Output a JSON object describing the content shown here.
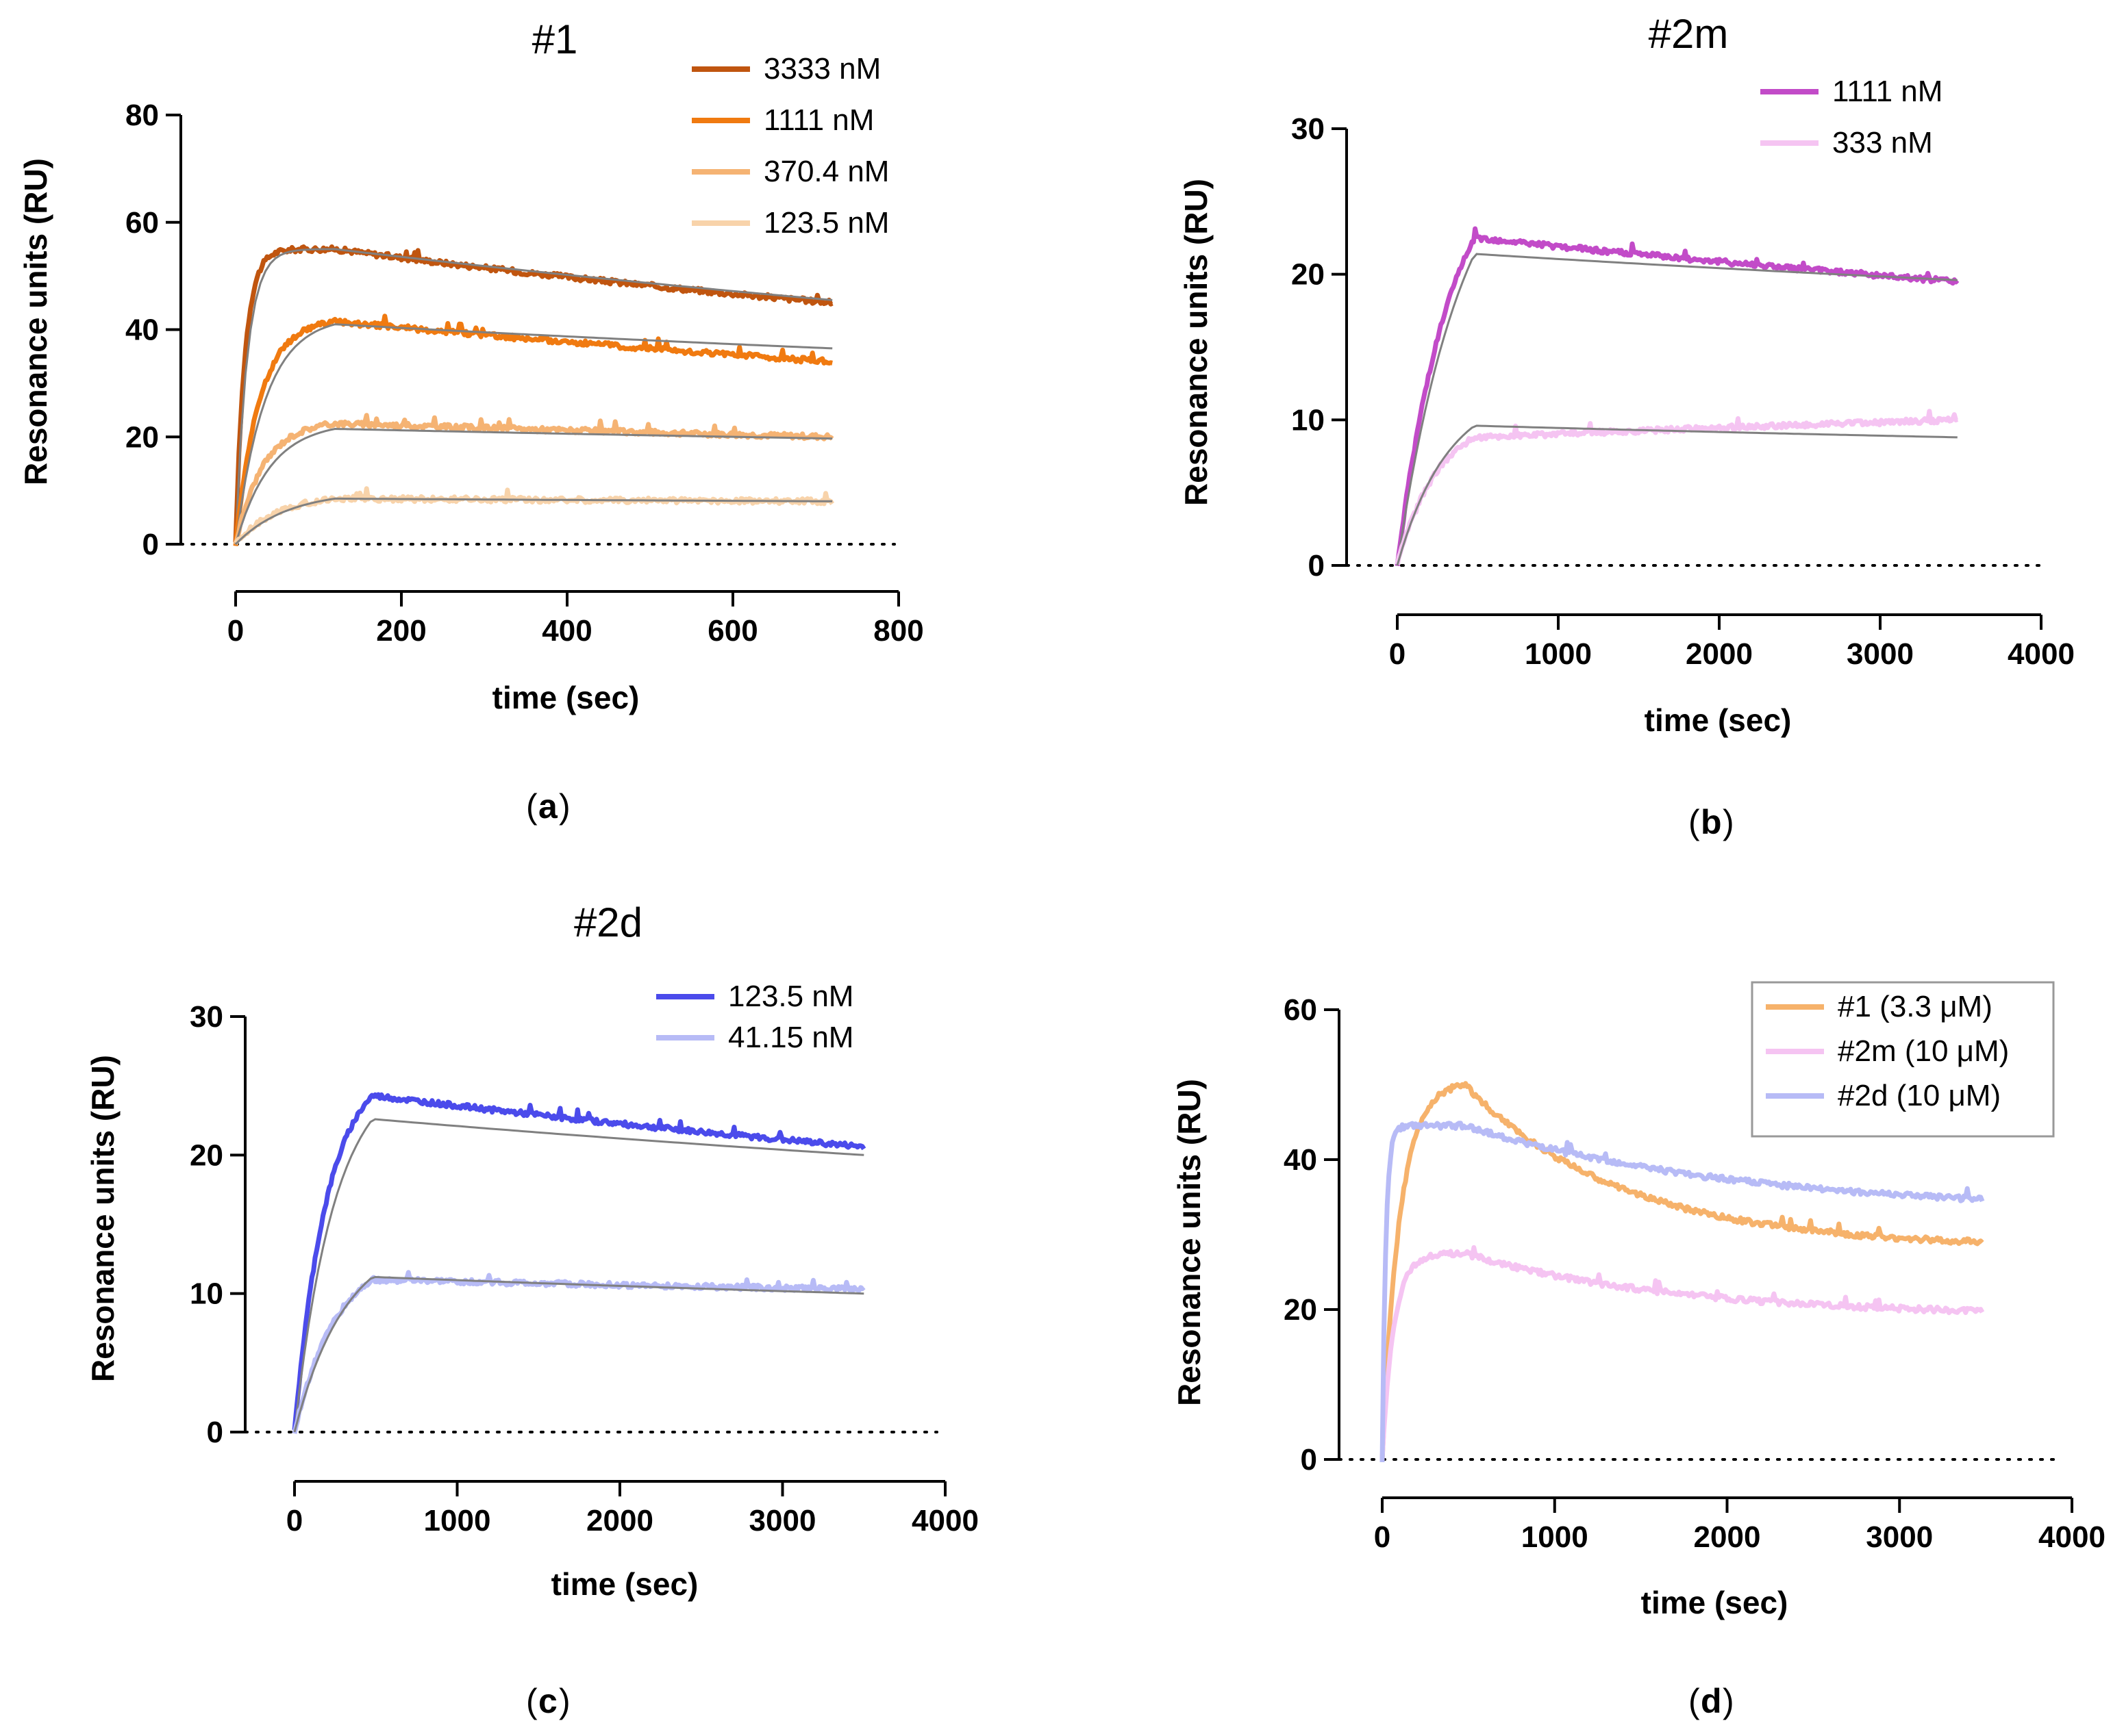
{
  "figure": {
    "panel_labels": [
      "a",
      "b",
      "c",
      "d"
    ],
    "colors": {
      "axis": "#000000",
      "fit": "#808080",
      "baseline": "#000000"
    }
  },
  "chart_data": [
    {
      "id": "a",
      "type": "line",
      "title": "#1",
      "xlabel": "time (sec)",
      "ylabel": "Resonance units (RU)",
      "xlim": [
        0,
        800
      ],
      "ylim": [
        0,
        80
      ],
      "xticks": [
        0,
        200,
        400,
        600,
        800
      ],
      "yticks": [
        0,
        20,
        40,
        60,
        80
      ],
      "baseline": 0,
      "legend_position": "top-right",
      "legend_box": false,
      "series": [
        {
          "name": "3333 nM",
          "color": "#C0550F",
          "plateau": 55,
          "end": 45,
          "fit_plateau": 55,
          "fit_end": 45.5,
          "kon": 0.09,
          "tau": 1400
        },
        {
          "name": "1111 nM",
          "color": "#F07A10",
          "plateau": 41.5,
          "end": 34,
          "fit_plateau": 41,
          "fit_end": 36.5,
          "kon": 0.035,
          "tau": 2400
        },
        {
          "name": "370.4 nM",
          "color": "#F5B373",
          "plateau": 22.5,
          "end": 20,
          "fit_plateau": 21.5,
          "fit_end": 19.7,
          "kon": 0.03,
          "tau": 6000
        },
        {
          "name": "123.5 nM",
          "color": "#F8D3AA",
          "plateau": 8.5,
          "end": 8,
          "fit_plateau": 8.5,
          "fit_end": 8,
          "kon": 0.02,
          "tau": 9000
        }
      ],
      "association_end": 120,
      "data_end": 720
    },
    {
      "id": "b",
      "type": "line",
      "title": "#2m",
      "xlabel": "time (sec)",
      "ylabel": "Resonance units (RU)",
      "xlim": [
        0,
        4000
      ],
      "ylim": [
        0,
        30
      ],
      "xticks": [
        0,
        1000,
        2000,
        3000,
        4000
      ],
      "yticks": [
        0,
        10,
        20,
        30
      ],
      "baseline": 0,
      "legend_position": "top-right",
      "legend_box": false,
      "series": [
        {
          "name": "1111 nM",
          "color": "#C24BC8",
          "plateau": 22.5,
          "end": 19.5,
          "fit_plateau": 21.4,
          "fit_end": 19.6,
          "kon": 0.003,
          "tau": 30000
        },
        {
          "name": "333 nM",
          "color": "#F5C4F2",
          "plateau": 8.8,
          "end": 10,
          "fit_plateau": 9.6,
          "fit_end": 8.8,
          "kon": 0.004,
          "tau": 40000
        }
      ],
      "association_end": 480,
      "data_end": 3480
    },
    {
      "id": "c",
      "type": "line",
      "title": "#2d",
      "xlabel": "time (sec)",
      "ylabel": "Resonance units (RU)",
      "xlim": [
        0,
        4000
      ],
      "ylim": [
        0,
        30
      ],
      "xticks": [
        0,
        1000,
        2000,
        3000,
        4000
      ],
      "yticks": [
        0,
        10,
        20,
        30
      ],
      "baseline": 0,
      "legend_position": "top-right",
      "legend_box": false,
      "series": [
        {
          "name": "123.5 nM",
          "color": "#4B4BEB",
          "plateau": 24.3,
          "end": 20.6,
          "fit_plateau": 22.6,
          "fit_end": 20,
          "kon": 0.005,
          "tau": 8000
        },
        {
          "name": "41.15 nM",
          "color": "#B7BBF6",
          "plateau": 11,
          "end": 10.3,
          "fit_plateau": 11.2,
          "fit_end": 10,
          "kon": 0.004,
          "tau": 25000
        }
      ],
      "association_end": 480,
      "data_end": 3500
    },
    {
      "id": "d",
      "type": "line",
      "title": "",
      "xlabel": "time (sec)",
      "ylabel": "Resonance units (RU)",
      "xlim": [
        0,
        4000
      ],
      "ylim": [
        0,
        60
      ],
      "xticks": [
        0,
        1000,
        2000,
        3000,
        4000
      ],
      "yticks": [
        0,
        20,
        40,
        60
      ],
      "baseline": 0,
      "legend_position": "top-right",
      "legend_box": true,
      "series": [
        {
          "name": "#1 (3.3 μM)",
          "color": "#F6B26B",
          "plateau": 50,
          "end": 29,
          "kon": 0.01,
          "tau": 900
        },
        {
          "name": "#2m (10 μM)",
          "color": "#F5C4F2",
          "plateau": 27.5,
          "end": 19.8,
          "kon": 0.015,
          "tau": 1200
        },
        {
          "name": "#2d (10 μM)",
          "color": "#B7BBF6",
          "plateau": 44.5,
          "end": 34.7,
          "kon": 0.05,
          "tau": 1600
        }
      ],
      "association_end": 480,
      "data_end": 3480
    }
  ]
}
